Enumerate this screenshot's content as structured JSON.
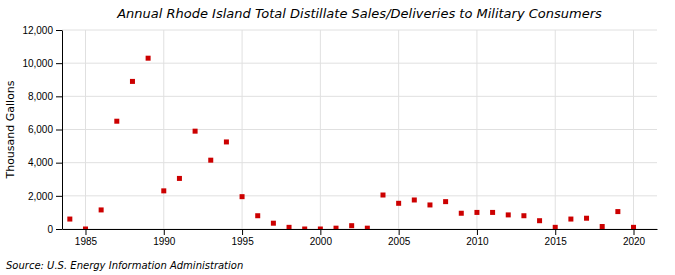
{
  "chart_data": {
    "type": "scatter",
    "title": "Annual Rhode Island Total Distillate Sales/Deliveries to Military Consumers",
    "ylabel": "Thousand Gallons",
    "annotation": "Source: U.S. Energy Information Administration",
    "color": "#cc0000",
    "marker": "square",
    "grid": true,
    "x": [
      1984,
      1985,
      1986,
      1987,
      1988,
      1989,
      1990,
      1991,
      1992,
      1993,
      1994,
      1995,
      1996,
      1997,
      1998,
      1999,
      2000,
      2001,
      2002,
      2003,
      2004,
      2005,
      2006,
      2007,
      2008,
      2009,
      2010,
      2011,
      2012,
      2013,
      2014,
      2015,
      2016,
      2017,
      2018,
      2019,
      2020
    ],
    "values": [
      600,
      0,
      1150,
      6500,
      8900,
      10300,
      2300,
      3050,
      5900,
      4150,
      5250,
      1950,
      800,
      350,
      100,
      0,
      0,
      50,
      200,
      50,
      2050,
      1550,
      1750,
      1450,
      1650,
      950,
      1000,
      1000,
      850,
      800,
      500,
      100,
      600,
      650,
      150,
      1050,
      100
    ],
    "xlim": [
      1983.5,
      2021.5
    ],
    "xticks": [
      1985,
      1990,
      1995,
      2000,
      2005,
      2010,
      2015,
      2020
    ],
    "ylim": [
      0,
      12000
    ],
    "yticks": [
      0,
      {
        "value": 2000,
        "label": "2,000"
      },
      {
        "value": 4000,
        "label": "4,000"
      },
      {
        "value": 6000,
        "label": "6,000"
      },
      {
        "value": 8000,
        "label": "8,000"
      },
      {
        "value": 10000,
        "label": "10,000"
      },
      {
        "value": 12000,
        "label": "12,000"
      }
    ]
  }
}
